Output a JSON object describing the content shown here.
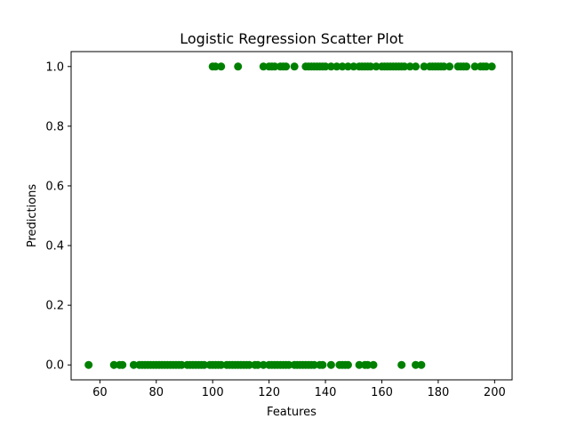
{
  "chart_data": {
    "type": "scatter",
    "title": "Logistic Regression Scatter Plot",
    "xlabel": "Features",
    "ylabel": "Predictions",
    "xlim": [
      49.8,
      206.2
    ],
    "ylim": [
      -0.05,
      1.05
    ],
    "xticks": [
      60,
      80,
      100,
      120,
      140,
      160,
      180,
      200
    ],
    "xtick_labels": [
      "60",
      "80",
      "100",
      "120",
      "140",
      "160",
      "180",
      "200"
    ],
    "yticks": [
      0.0,
      0.2,
      0.4,
      0.6,
      0.8,
      1.0
    ],
    "ytick_labels": [
      "0.0",
      "0.2",
      "0.4",
      "0.6",
      "0.8",
      "1.0"
    ],
    "grid": false,
    "legend": "none",
    "marker_color": "#008000",
    "series": [
      {
        "x": [
          56,
          65,
          67,
          68,
          72,
          74,
          75,
          76,
          77,
          78,
          79,
          80,
          81,
          82,
          83,
          84,
          85,
          86,
          87,
          88,
          89,
          91,
          92,
          93,
          94,
          95,
          96,
          97,
          99,
          100,
          101,
          102,
          103,
          105,
          106,
          107,
          108,
          109,
          110,
          111,
          112,
          113,
          115,
          116,
          118,
          120,
          121,
          122,
          123,
          124,
          125,
          126,
          127,
          129,
          130,
          131,
          132,
          133,
          134,
          135,
          136,
          138,
          139,
          142,
          145,
          146,
          147,
          148,
          152,
          154,
          155,
          157,
          167,
          172,
          174,
          100,
          101,
          103,
          109,
          118,
          120,
          121,
          122,
          124,
          125,
          126,
          129,
          133,
          134,
          135,
          136,
          137,
          138,
          139,
          140,
          142,
          144,
          146,
          148,
          150,
          152,
          153,
          154,
          155,
          156,
          158,
          160,
          161,
          162,
          163,
          164,
          165,
          166,
          167,
          168,
          170,
          172,
          175,
          177,
          178,
          179,
          180,
          181,
          182,
          184,
          187,
          188,
          189,
          190,
          193,
          195,
          196,
          197,
          199
        ],
        "y": [
          0,
          0,
          0,
          0,
          0,
          0,
          0,
          0,
          0,
          0,
          0,
          0,
          0,
          0,
          0,
          0,
          0,
          0,
          0,
          0,
          0,
          0,
          0,
          0,
          0,
          0,
          0,
          0,
          0,
          0,
          0,
          0,
          0,
          0,
          0,
          0,
          0,
          0,
          0,
          0,
          0,
          0,
          0,
          0,
          0,
          0,
          0,
          0,
          0,
          0,
          0,
          0,
          0,
          0,
          0,
          0,
          0,
          0,
          0,
          0,
          0,
          0,
          0,
          0,
          0,
          0,
          0,
          0,
          0,
          0,
          0,
          0,
          0,
          0,
          0,
          1,
          1,
          1,
          1,
          1,
          1,
          1,
          1,
          1,
          1,
          1,
          1,
          1,
          1,
          1,
          1,
          1,
          1,
          1,
          1,
          1,
          1,
          1,
          1,
          1,
          1,
          1,
          1,
          1,
          1,
          1,
          1,
          1,
          1,
          1,
          1,
          1,
          1,
          1,
          1,
          1,
          1,
          1,
          1,
          1,
          1,
          1,
          1,
          1,
          1,
          1,
          1,
          1,
          1,
          1,
          1,
          1,
          1,
          1
        ]
      }
    ]
  }
}
